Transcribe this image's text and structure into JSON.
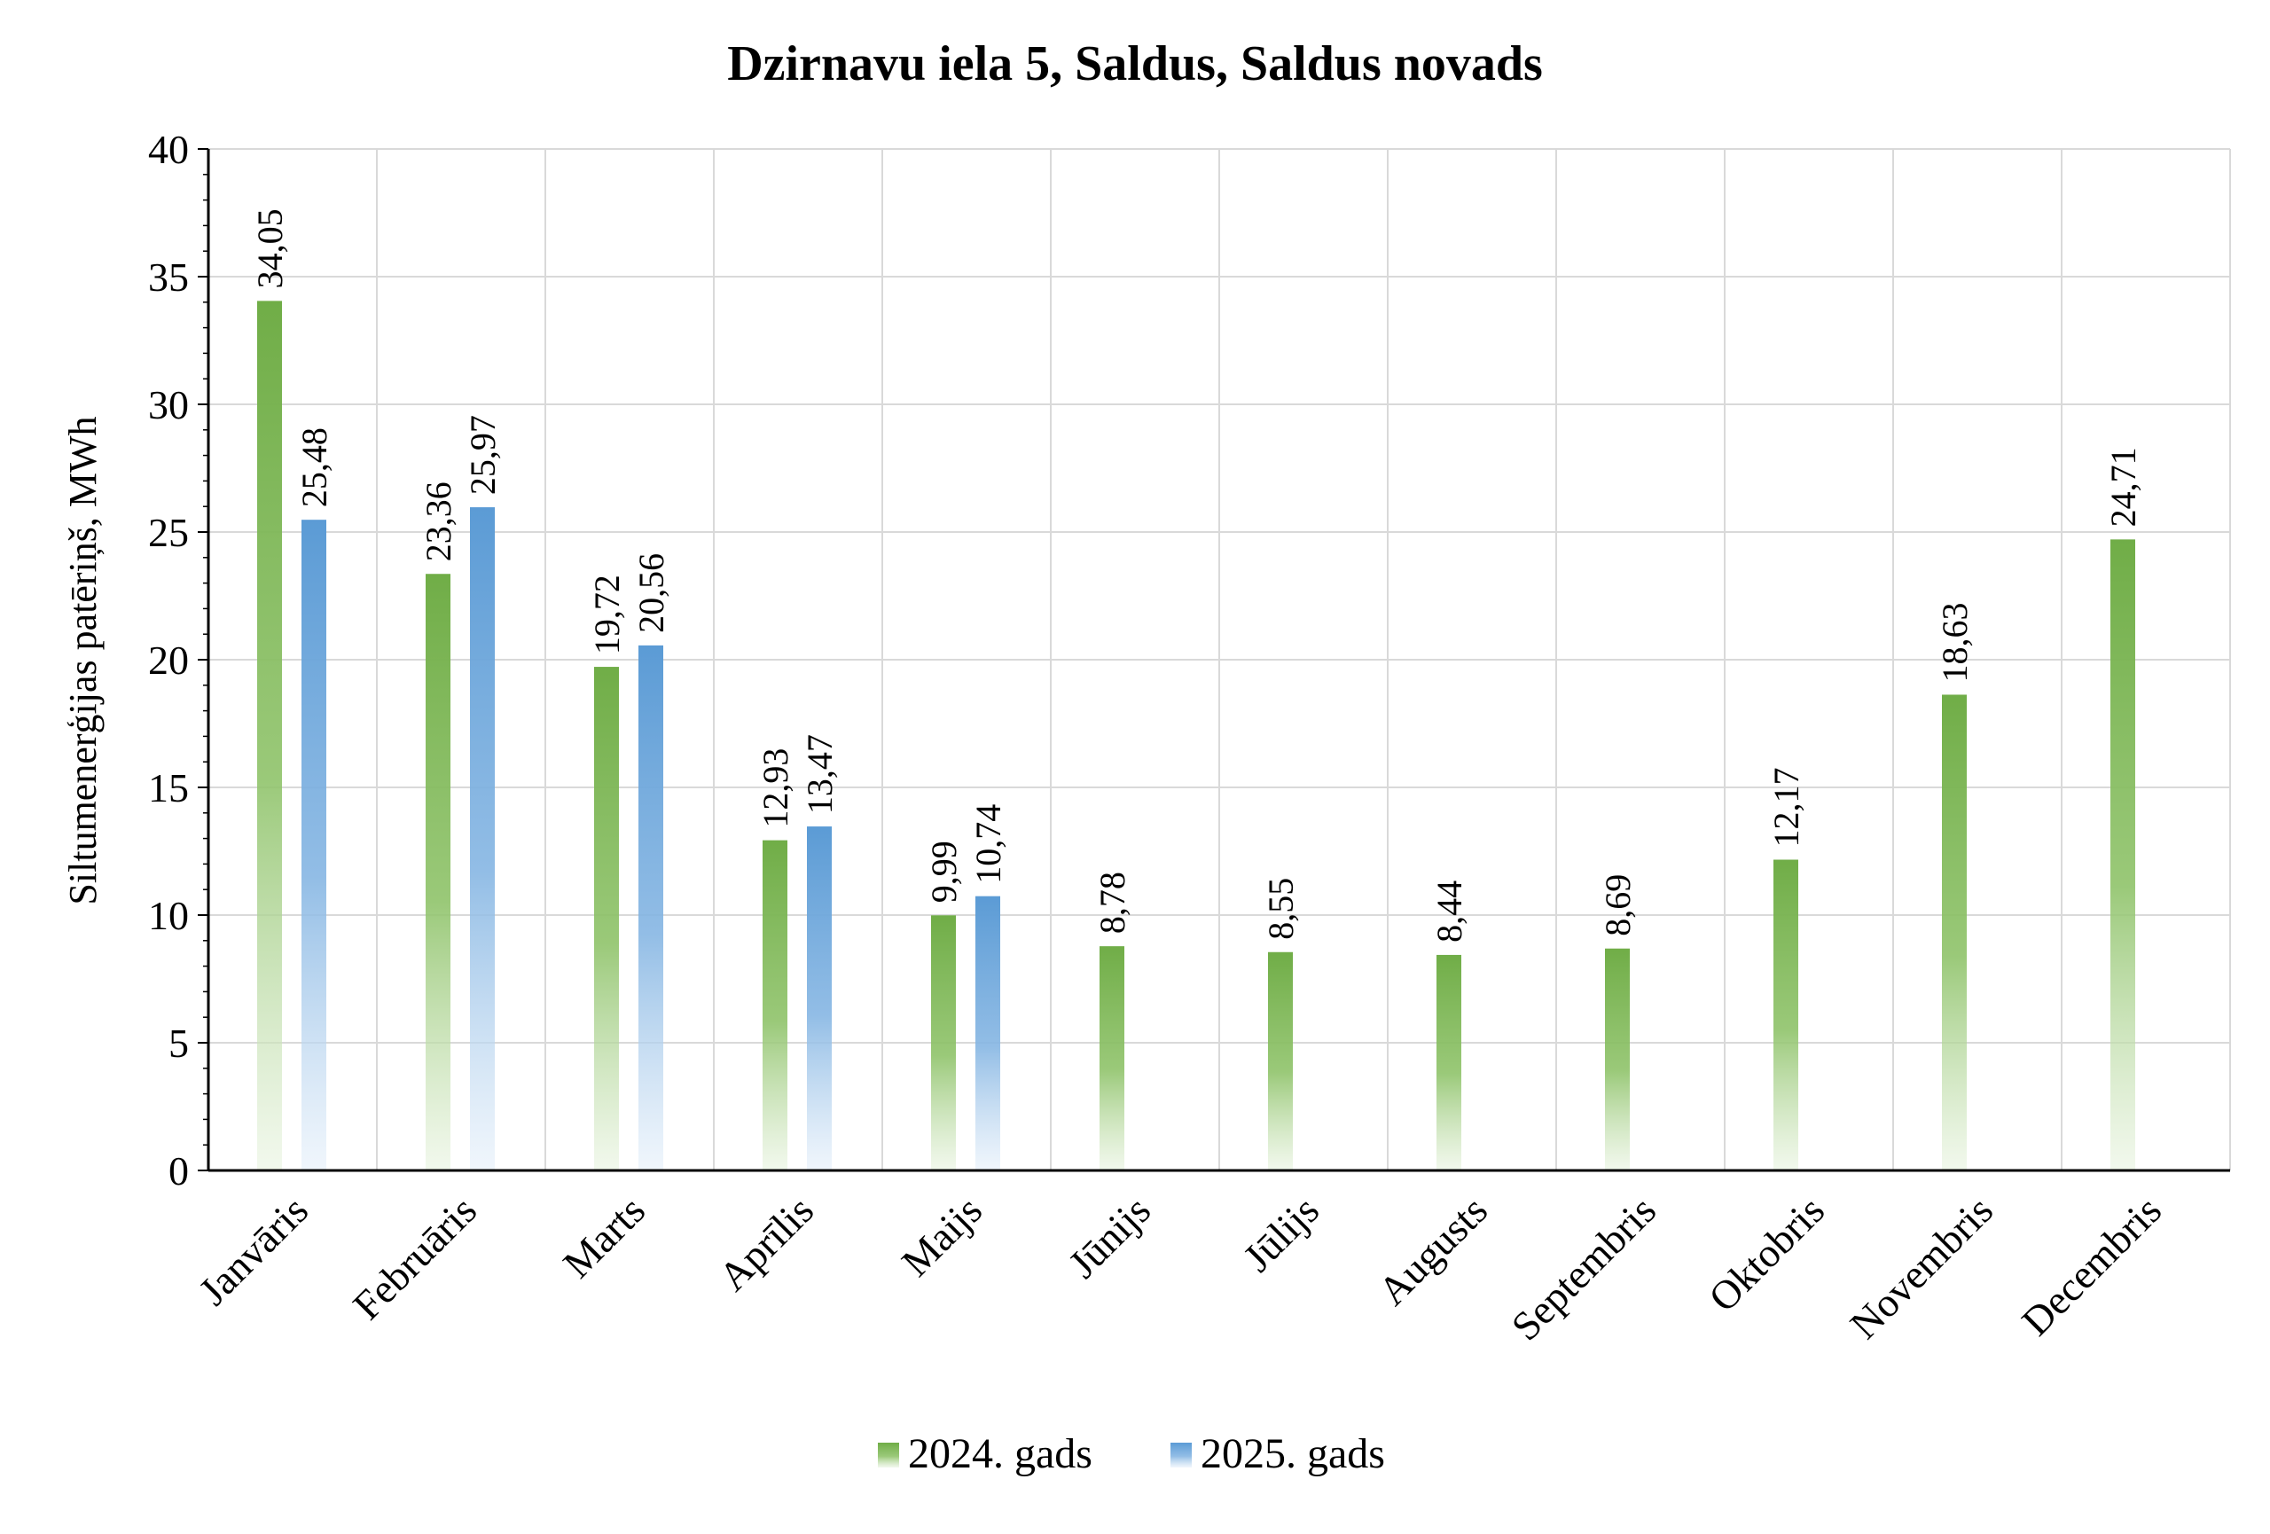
{
  "chart_data": {
    "type": "bar",
    "title": "Dzirnavu iela 5, Saldus, Saldus novads",
    "ylabel": "Siltumenerģijas patēriņš, MWh",
    "xlabel": "",
    "ylim": [
      0,
      40
    ],
    "yticks": [
      0,
      5,
      10,
      15,
      20,
      25,
      30,
      35,
      40
    ],
    "grid": true,
    "legend_position": "bottom",
    "categories": [
      "Janvāris",
      "Februāris",
      "Marts",
      "Aprīlis",
      "Maijs",
      "Jūnijs",
      "Jūlijs",
      "Augusts",
      "Septembris",
      "Oktobris",
      "Novembris",
      "Decembris"
    ],
    "series": [
      {
        "name": "2024. gads",
        "color": "#70ad47",
        "values": [
          34.05,
          23.36,
          19.72,
          12.93,
          9.99,
          8.78,
          8.55,
          8.44,
          8.69,
          12.17,
          18.63,
          24.71
        ],
        "labels": [
          "34,05",
          "23,36",
          "19,72",
          "12,93",
          "9,99",
          "8,78",
          "8,55",
          "8,44",
          "8,69",
          "12,17",
          "18,63",
          "24,71"
        ]
      },
      {
        "name": "2025. gads",
        "color": "#5b9bd5",
        "values": [
          25.48,
          25.97,
          20.56,
          13.47,
          10.74,
          null,
          null,
          null,
          null,
          null,
          null,
          null
        ],
        "labels": [
          "25,48",
          "25,97",
          "20,56",
          "13,47",
          "10,74",
          "",
          "",
          "",
          "",
          "",
          "",
          ""
        ]
      }
    ]
  }
}
